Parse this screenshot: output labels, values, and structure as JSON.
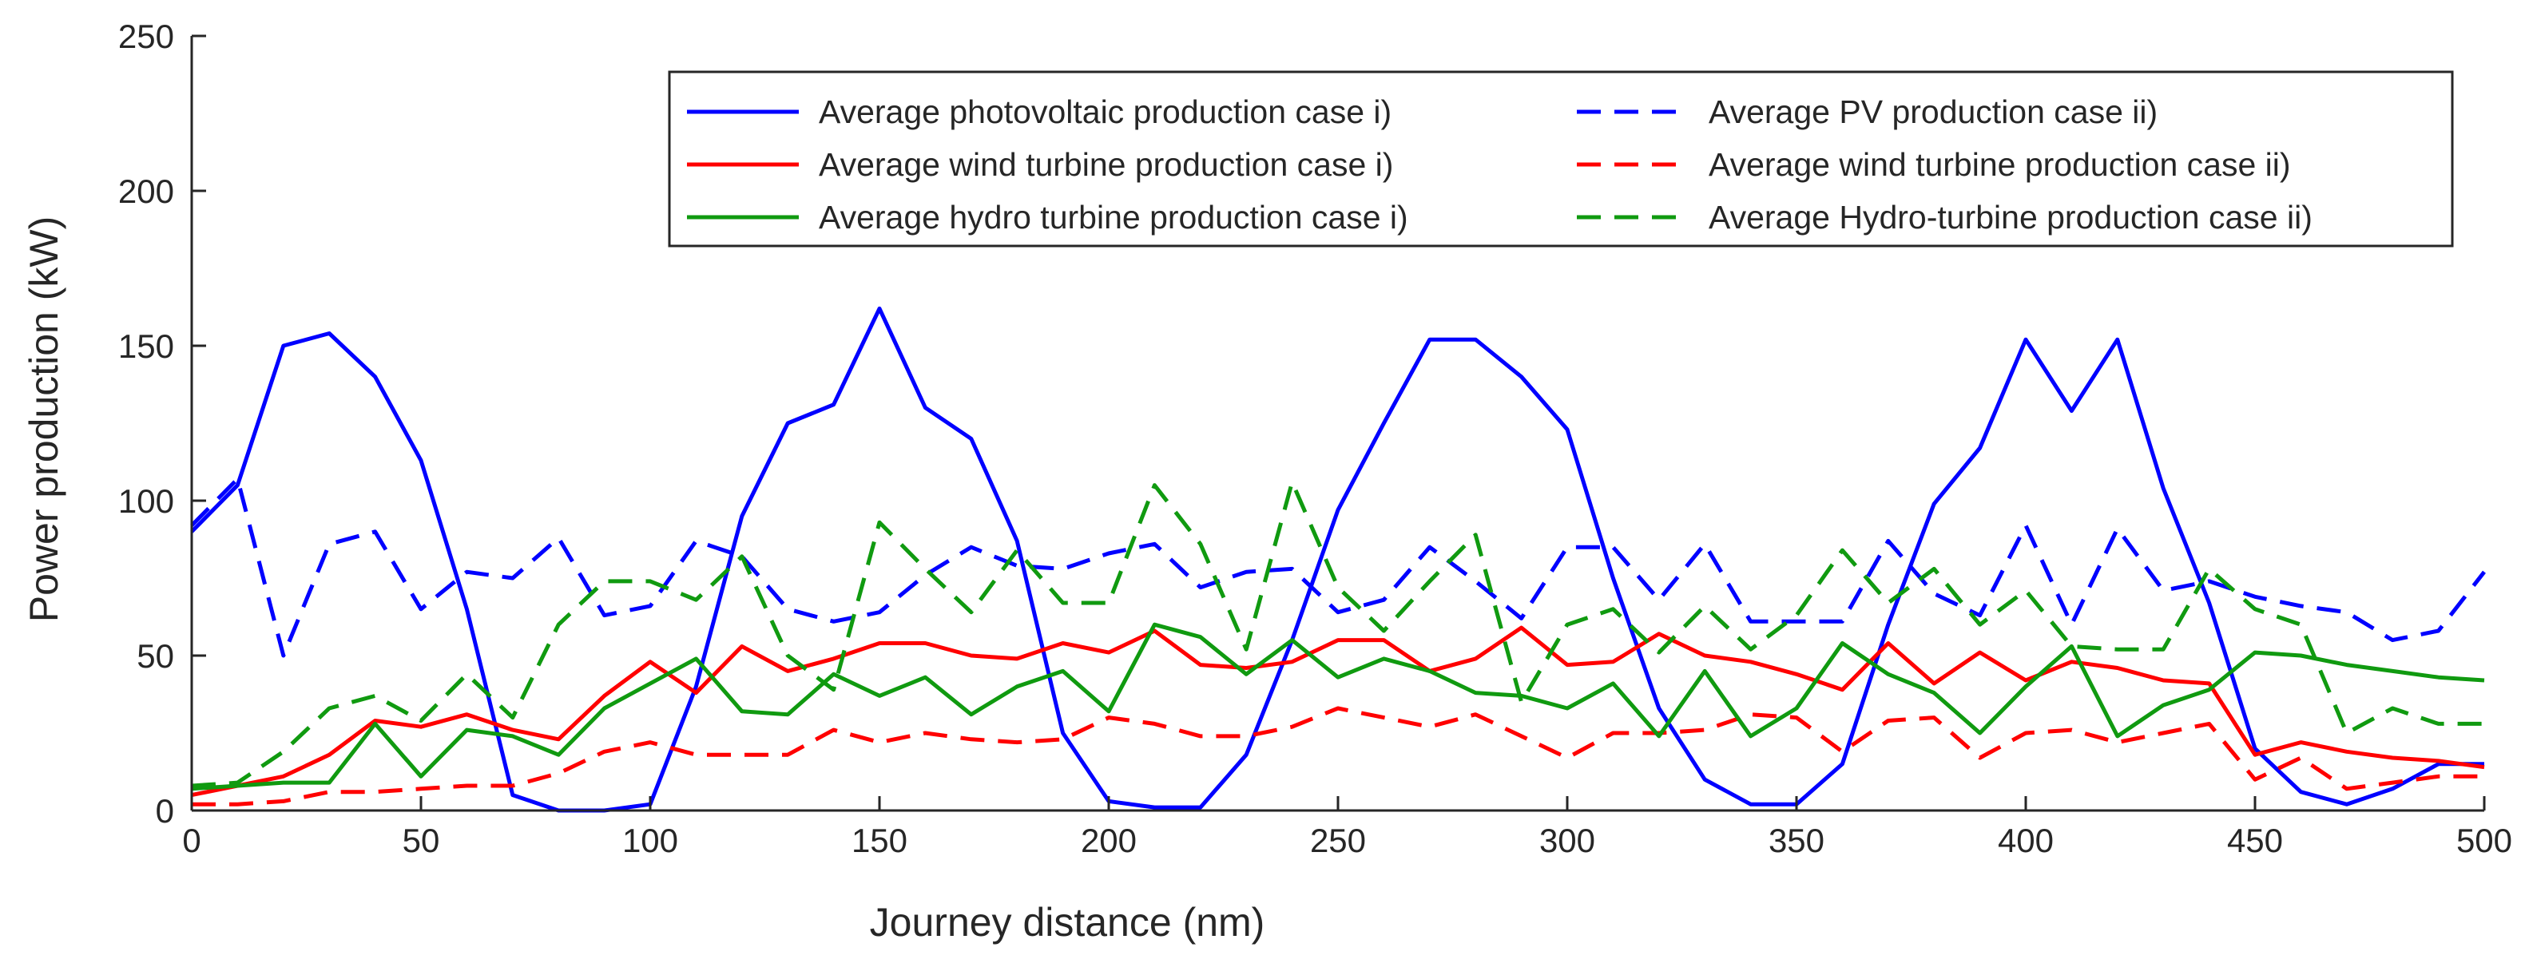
{
  "chart_data": {
    "type": "line",
    "title": "",
    "xlabel": "Journey distance (nm)",
    "ylabel": "Power production (kW)",
    "xlim": [
      0,
      500
    ],
    "ylim": [
      0,
      250
    ],
    "xticks": [
      0,
      50,
      100,
      150,
      200,
      250,
      300,
      350,
      400,
      450,
      500
    ],
    "yticks": [
      0,
      50,
      100,
      150,
      200,
      250
    ],
    "grid": false,
    "legend_position": "top-right",
    "colors": {
      "blue": "#0000ff",
      "red": "#ff0000",
      "green": "#109a10",
      "axis": "#262626"
    },
    "x": [
      0,
      10,
      20,
      30,
      40,
      50,
      60,
      70,
      80,
      90,
      100,
      110,
      120,
      130,
      140,
      150,
      160,
      170,
      180,
      190,
      200,
      210,
      220,
      230,
      240,
      250,
      260,
      270,
      280,
      290,
      300,
      310,
      320,
      330,
      340,
      350,
      360,
      370,
      380,
      390,
      400,
      410,
      420,
      430,
      440,
      450,
      460,
      470,
      480,
      490,
      500
    ],
    "series": [
      {
        "name": "Average photovoltaic production case i)",
        "color": "#0000ff",
        "style": "solid",
        "values": [
          90,
          105,
          150,
          154,
          140,
          113,
          65,
          5,
          0,
          0,
          2,
          40,
          95,
          125,
          131,
          162,
          130,
          120,
          87,
          25,
          3,
          1,
          1,
          18,
          55,
          97,
          125,
          152,
          152,
          140,
          123,
          75,
          33,
          10,
          2,
          2,
          15,
          60,
          99,
          117,
          152,
          129,
          152,
          104,
          67,
          20,
          6,
          2,
          7,
          15,
          15
        ]
      },
      {
        "name": "Average PV production case ii)",
        "color": "#0000ff",
        "style": "dashed",
        "values": [
          92,
          107,
          50,
          86,
          90,
          65,
          77,
          75,
          88,
          63,
          66,
          87,
          82,
          65,
          61,
          64,
          76,
          85,
          79,
          78,
          83,
          86,
          72,
          77,
          78,
          64,
          68,
          85,
          74,
          62,
          85,
          85,
          68,
          86,
          61,
          61,
          61,
          87,
          70,
          63,
          92,
          60,
          91,
          71,
          74,
          69,
          66,
          64,
          55,
          58,
          77
        ]
      },
      {
        "name": "Average wind turbine production case i)",
        "color": "#ff0000",
        "style": "solid",
        "values": [
          5,
          8,
          11,
          18,
          29,
          27,
          31,
          26,
          23,
          37,
          48,
          38,
          53,
          45,
          49,
          54,
          54,
          50,
          49,
          54,
          51,
          58,
          47,
          46,
          48,
          55,
          55,
          45,
          49,
          59,
          47,
          48,
          57,
          50,
          48,
          44,
          39,
          54,
          41,
          51,
          42,
          48,
          46,
          42,
          41,
          18,
          22,
          19,
          17,
          16,
          14
        ]
      },
      {
        "name": "Average wind turbine production case ii)",
        "color": "#ff0000",
        "style": "dashed",
        "values": [
          2,
          2,
          3,
          6,
          6,
          7,
          8,
          8,
          12,
          19,
          22,
          18,
          18,
          18,
          26,
          22,
          25,
          23,
          22,
          23,
          30,
          28,
          24,
          24,
          27,
          33,
          30,
          27,
          31,
          24,
          17,
          25,
          25,
          26,
          31,
          30,
          19,
          29,
          30,
          17,
          25,
          26,
          22,
          25,
          28,
          10,
          17,
          7,
          9,
          11,
          11
        ]
      },
      {
        "name": "Average hydro turbine production case i)",
        "color": "#109a10",
        "style": "solid",
        "values": [
          7,
          8,
          9,
          9,
          28,
          11,
          26,
          24,
          18,
          33,
          41,
          49,
          32,
          31,
          44,
          37,
          43,
          31,
          40,
          45,
          32,
          60,
          56,
          44,
          55,
          43,
          49,
          45,
          38,
          37,
          33,
          41,
          24,
          45,
          24,
          33,
          54,
          44,
          38,
          25,
          40,
          53,
          24,
          34,
          39,
          51,
          50,
          47,
          45,
          43,
          42
        ]
      },
      {
        "name": "Average Hydro-turbine production case ii)",
        "color": "#109a10",
        "style": "dashed",
        "values": [
          8,
          9,
          19,
          33,
          37,
          29,
          44,
          30,
          60,
          74,
          74,
          68,
          82,
          50,
          39,
          93,
          78,
          64,
          84,
          67,
          67,
          105,
          86,
          52,
          106,
          72,
          58,
          74,
          89,
          35,
          60,
          65,
          51,
          66,
          52,
          63,
          84,
          67,
          78,
          60,
          71,
          53,
          52,
          52,
          78,
          65,
          60,
          25,
          33,
          28,
          28
        ]
      }
    ]
  }
}
